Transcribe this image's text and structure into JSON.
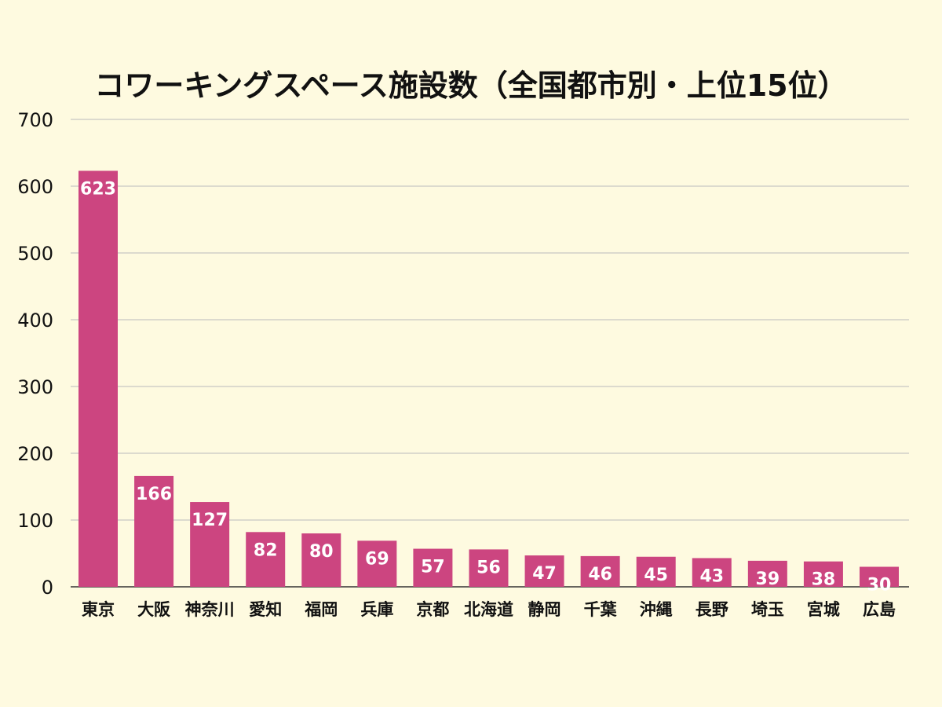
{
  "chart_data": {
    "type": "bar",
    "title": "コワーキングスペース施設数（全国都市別・上位15位）",
    "categories": [
      "東京",
      "大阪",
      "神奈川",
      "愛知",
      "福岡",
      "兵庫",
      "京都",
      "北海道",
      "静岡",
      "千葉",
      "沖縄",
      "長野",
      "埼玉",
      "宮城",
      "広島"
    ],
    "values": [
      623,
      166,
      127,
      82,
      80,
      69,
      57,
      56,
      47,
      46,
      45,
      43,
      39,
      38,
      30
    ],
    "ylim": [
      0,
      700
    ],
    "yticks": [
      0,
      100,
      200,
      300,
      400,
      500,
      600,
      700
    ],
    "xlabel": "",
    "ylabel": "",
    "grid": true,
    "bar_color": "#cc4580",
    "background_color": "#fefae0"
  }
}
